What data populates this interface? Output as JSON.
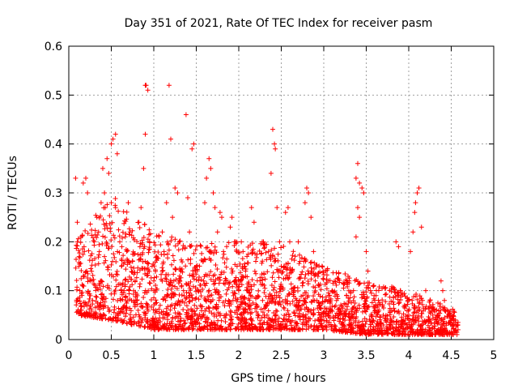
{
  "chart_data": {
    "type": "scatter",
    "title": "Day 351 of 2021, Rate Of TEC Index for receiver pasm",
    "xlabel": "GPS time / hours",
    "ylabel": "ROTI / TECUs",
    "xlim": [
      0,
      5
    ],
    "ylim": [
      0,
      0.6
    ],
    "xticks": [
      0,
      0.5,
      1,
      1.5,
      2,
      2.5,
      3,
      3.5,
      4,
      4.5,
      5
    ],
    "xtick_labels": [
      "0",
      "0.5",
      "1",
      "1.5",
      "2",
      "2.5",
      "3",
      "3.5",
      "4",
      "4.5",
      "5"
    ],
    "yticks": [
      0,
      0.1,
      0.2,
      0.3,
      0.4,
      0.5,
      0.6
    ],
    "ytick_labels": [
      "0",
      "0.1",
      "0.2",
      "0.3",
      "0.4",
      "0.5",
      "0.6"
    ],
    "grid": true,
    "marker": "+",
    "color": "#ff0000",
    "series": [
      {
        "name": "ROTI",
        "points": [
          [
            0.08,
            0.33
          ],
          [
            0.1,
            0.24
          ],
          [
            0.1,
            0.2
          ],
          [
            0.12,
            0.15
          ],
          [
            0.13,
            0.1
          ],
          [
            0.15,
            0.06
          ],
          [
            0.17,
            0.32
          ],
          [
            0.2,
            0.33
          ],
          [
            0.22,
            0.3
          ],
          [
            0.18,
            0.19
          ],
          [
            0.25,
            0.12
          ],
          [
            0.28,
            0.08
          ],
          [
            0.3,
            0.2
          ],
          [
            0.33,
            0.25
          ],
          [
            0.35,
            0.22
          ],
          [
            0.38,
            0.28
          ],
          [
            0.4,
            0.35
          ],
          [
            0.42,
            0.3
          ],
          [
            0.45,
            0.37
          ],
          [
            0.47,
            0.34
          ],
          [
            0.5,
            0.4
          ],
          [
            0.52,
            0.41
          ],
          [
            0.55,
            0.42
          ],
          [
            0.57,
            0.38
          ],
          [
            0.5,
            0.28
          ],
          [
            0.55,
            0.27
          ],
          [
            0.6,
            0.2
          ],
          [
            0.62,
            0.15
          ],
          [
            0.65,
            0.1
          ],
          [
            0.68,
            0.06
          ],
          [
            0.7,
            0.28
          ],
          [
            0.72,
            0.22
          ],
          [
            0.75,
            0.16
          ],
          [
            0.78,
            0.12
          ],
          [
            0.8,
            0.08
          ],
          [
            0.85,
            0.27
          ],
          [
            0.88,
            0.35
          ],
          [
            0.9,
            0.52
          ],
          [
            0.91,
            0.52
          ],
          [
            0.93,
            0.51
          ],
          [
            0.9,
            0.42
          ],
          [
            0.95,
            0.2
          ],
          [
            0.98,
            0.15
          ],
          [
            1.0,
            0.1
          ],
          [
            1.02,
            0.06
          ],
          [
            1.05,
            0.03
          ],
          [
            1.1,
            0.22
          ],
          [
            1.12,
            0.18
          ],
          [
            1.15,
            0.28
          ],
          [
            1.18,
            0.52
          ],
          [
            1.2,
            0.41
          ],
          [
            1.22,
            0.25
          ],
          [
            1.25,
            0.31
          ],
          [
            1.28,
            0.3
          ],
          [
            1.3,
            0.2
          ],
          [
            1.32,
            0.14
          ],
          [
            1.35,
            0.1
          ],
          [
            1.38,
            0.46
          ],
          [
            1.4,
            0.29
          ],
          [
            1.42,
            0.22
          ],
          [
            1.45,
            0.39
          ],
          [
            1.47,
            0.4
          ],
          [
            1.5,
            0.15
          ],
          [
            1.52,
            0.1
          ],
          [
            1.55,
            0.07
          ],
          [
            1.58,
            0.05
          ],
          [
            1.6,
            0.28
          ],
          [
            1.62,
            0.33
          ],
          [
            1.65,
            0.37
          ],
          [
            1.67,
            0.35
          ],
          [
            1.7,
            0.3
          ],
          [
            1.72,
            0.27
          ],
          [
            1.75,
            0.22
          ],
          [
            1.78,
            0.26
          ],
          [
            1.8,
            0.25
          ],
          [
            1.82,
            0.18
          ],
          [
            1.85,
            0.12
          ],
          [
            1.88,
            0.08
          ],
          [
            1.9,
            0.23
          ],
          [
            1.92,
            0.25
          ],
          [
            1.95,
            0.2
          ],
          [
            1.98,
            0.15
          ],
          [
            2.0,
            0.1
          ],
          [
            2.03,
            0.2
          ],
          [
            2.05,
            0.18
          ],
          [
            2.08,
            0.14
          ],
          [
            2.1,
            0.1
          ],
          [
            2.13,
            0.07
          ],
          [
            2.15,
            0.27
          ],
          [
            2.18,
            0.24
          ],
          [
            2.2,
            0.16
          ],
          [
            2.25,
            0.12
          ],
          [
            2.28,
            0.08
          ],
          [
            2.3,
            0.05
          ],
          [
            2.35,
            0.18
          ],
          [
            2.38,
            0.34
          ],
          [
            2.4,
            0.43
          ],
          [
            2.42,
            0.4
          ],
          [
            2.43,
            0.39
          ],
          [
            2.45,
            0.27
          ],
          [
            2.48,
            0.2
          ],
          [
            2.5,
            0.15
          ],
          [
            2.55,
            0.26
          ],
          [
            2.58,
            0.27
          ],
          [
            2.6,
            0.2
          ],
          [
            2.63,
            0.14
          ],
          [
            2.65,
            0.1
          ],
          [
            2.68,
            0.07
          ],
          [
            2.7,
            0.2
          ],
          [
            2.72,
            0.16
          ],
          [
            2.75,
            0.11
          ],
          [
            2.78,
            0.28
          ],
          [
            2.8,
            0.31
          ],
          [
            2.82,
            0.3
          ],
          [
            2.85,
            0.25
          ],
          [
            2.88,
            0.18
          ],
          [
            2.9,
            0.12
          ],
          [
            2.92,
            0.08
          ],
          [
            2.95,
            0.05
          ],
          [
            2.98,
            0.15
          ],
          [
            3.0,
            0.14
          ],
          [
            3.05,
            0.12
          ],
          [
            3.1,
            0.1
          ],
          [
            3.15,
            0.08
          ],
          [
            3.2,
            0.06
          ],
          [
            3.25,
            0.05
          ],
          [
            3.3,
            0.04
          ],
          [
            3.35,
            0.1
          ],
          [
            3.38,
            0.33
          ],
          [
            3.4,
            0.36
          ],
          [
            3.42,
            0.32
          ],
          [
            3.45,
            0.31
          ],
          [
            3.47,
            0.3
          ],
          [
            3.4,
            0.27
          ],
          [
            3.42,
            0.25
          ],
          [
            3.38,
            0.21
          ],
          [
            3.5,
            0.18
          ],
          [
            3.52,
            0.14
          ],
          [
            3.55,
            0.1
          ],
          [
            3.6,
            0.08
          ],
          [
            3.65,
            0.06
          ],
          [
            3.7,
            0.05
          ],
          [
            3.75,
            0.04
          ],
          [
            3.8,
            0.06
          ],
          [
            3.85,
            0.2
          ],
          [
            3.88,
            0.19
          ],
          [
            3.9,
            0.1
          ],
          [
            3.95,
            0.07
          ],
          [
            4.0,
            0.05
          ],
          [
            4.02,
            0.18
          ],
          [
            4.05,
            0.22
          ],
          [
            4.07,
            0.26
          ],
          [
            4.08,
            0.28
          ],
          [
            4.1,
            0.3
          ],
          [
            4.12,
            0.31
          ],
          [
            4.15,
            0.23
          ],
          [
            4.2,
            0.1
          ],
          [
            4.25,
            0.08
          ],
          [
            4.3,
            0.06
          ],
          [
            4.35,
            0.05
          ],
          [
            4.38,
            0.12
          ],
          [
            4.4,
            0.1
          ],
          [
            4.42,
            0.08
          ],
          [
            4.45,
            0.06
          ],
          [
            4.48,
            0.05
          ],
          [
            4.5,
            0.04
          ],
          [
            4.52,
            0.03
          ],
          [
            4.55,
            0.04
          ],
          [
            4.57,
            0.03
          ],
          [
            4.58,
            0.02
          ]
        ],
        "band": {
          "description": "dense low-value cluster",
          "envelope": [
            [
              0.08,
              0.05,
              0.2
            ],
            [
              0.5,
              0.04,
              0.3
            ],
            [
              1.0,
              0.02,
              0.22
            ],
            [
              1.5,
              0.02,
              0.2
            ],
            [
              2.0,
              0.02,
              0.2
            ],
            [
              2.5,
              0.02,
              0.2
            ],
            [
              3.0,
              0.02,
              0.15
            ],
            [
              3.5,
              0.01,
              0.12
            ],
            [
              4.0,
              0.01,
              0.1
            ],
            [
              4.58,
              0.01,
              0.06
            ]
          ],
          "count": 2600
        }
      }
    ]
  }
}
